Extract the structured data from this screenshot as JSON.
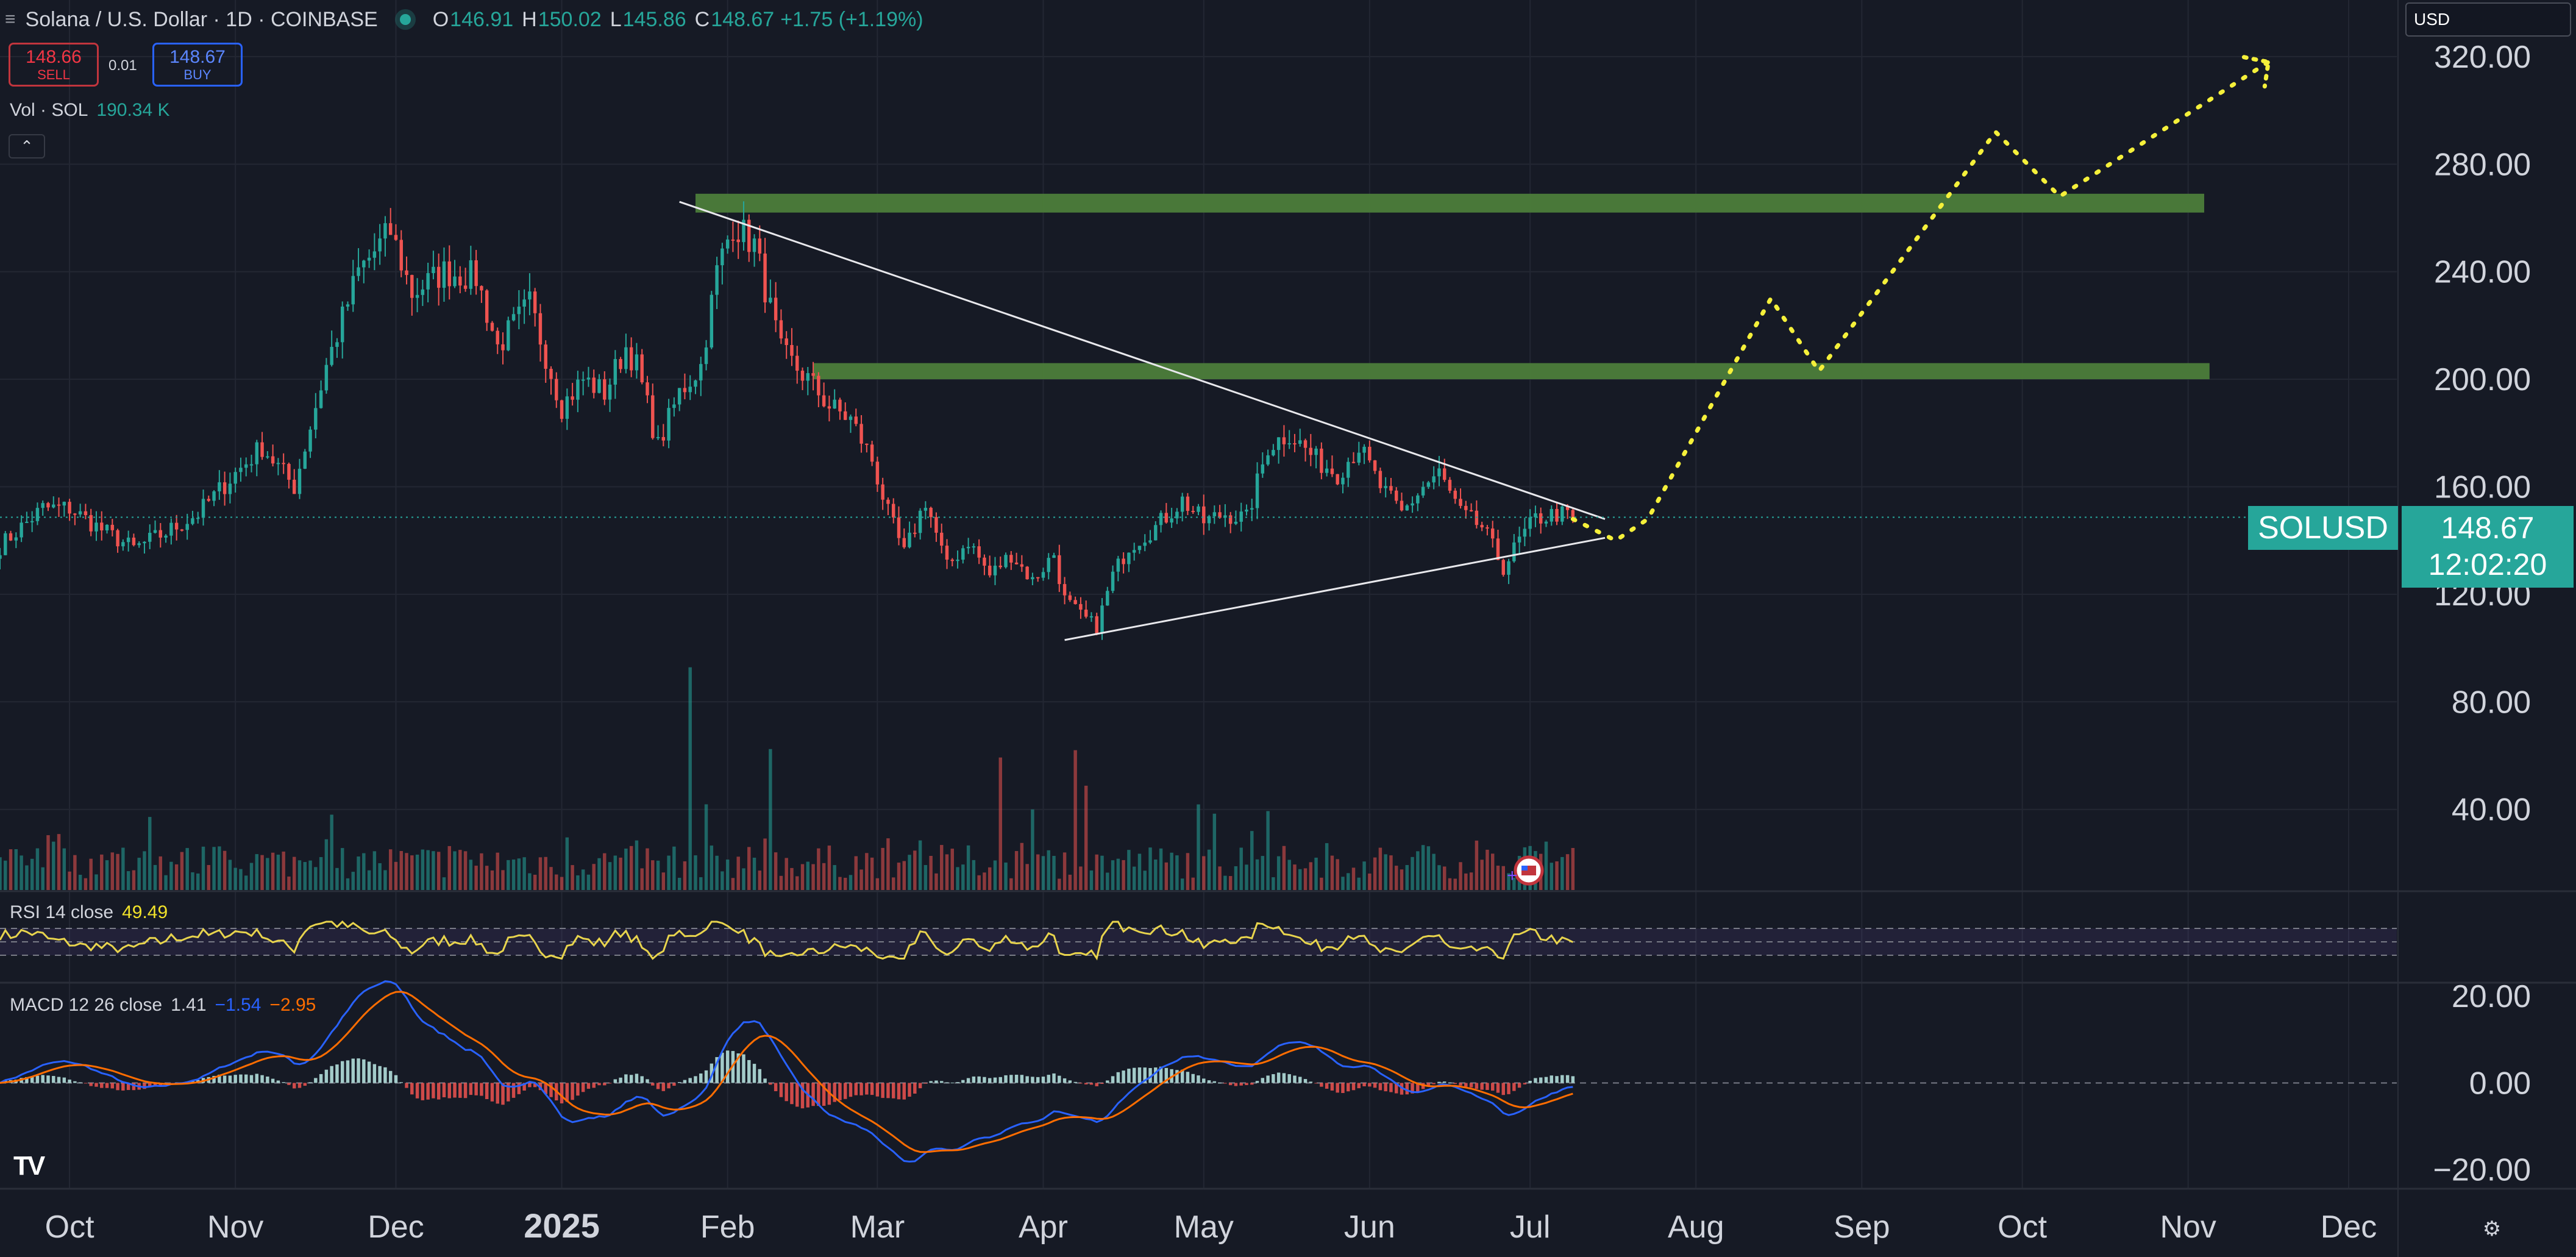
{
  "header": {
    "menu_icon": "hamburger-icon",
    "symbol_title": "Solana / U.S. Dollar · 1D · COINBASE",
    "status_icon": "market-open-dot-icon",
    "o_label": "O",
    "o_value": "146.91",
    "h_label": "H",
    "h_value": "150.02",
    "l_label": "L",
    "l_value": "145.86",
    "c_label": "C",
    "c_value": "148.67",
    "change": "+1.75 (+1.19%)"
  },
  "trade": {
    "sell_price": "148.66",
    "sell_label": "SELL",
    "spread": "0.01",
    "buy_price": "148.67",
    "buy_label": "BUY"
  },
  "volume_legend": {
    "label": "Vol · SOL",
    "value": "190.34 K"
  },
  "collapse_icon": "chevron-up-icon",
  "currency_select": "USD",
  "price_tag": {
    "symbol": "SOLUSD",
    "price": "148.67",
    "countdown": "12:02:20"
  },
  "rsi_legend": {
    "label": "RSI 14 close",
    "value": "49.49"
  },
  "macd_legend": {
    "label": "MACD 12 26 close",
    "hist": "1.41",
    "macd": "−1.54",
    "signal": "−2.95"
  },
  "logo_text": "TV",
  "settings_icon": "settings-icon",
  "chart_data": {
    "type": "candlestick",
    "title": "Solana / U.S. Dollar · 1D · COINBASE",
    "colors": {
      "up": "#26a69a",
      "down": "#ef5350",
      "grid": "#232733",
      "bg": "#161a25",
      "zone": "#4c7d3a",
      "projection": "#f5f03a",
      "rsi": "#e8d44d",
      "macd": "#2962ff",
      "signal": "#ff6d00"
    },
    "x_axis": {
      "ticks": [
        "Oct",
        "Nov",
        "Dec",
        "2025",
        "Feb",
        "Mar",
        "Apr",
        "May",
        "Jun",
        "Jul",
        "Aug",
        "Sep",
        "Oct",
        "Nov",
        "Dec"
      ],
      "tick_days": [
        0,
        31,
        61,
        92,
        123,
        151,
        182,
        212,
        243,
        273,
        304,
        335,
        365,
        396,
        426
      ],
      "day_range": [
        -13,
        435
      ],
      "first_day": "2024-10-01"
    },
    "price_axis": {
      "ticks": [
        40,
        80,
        120,
        160,
        200,
        240,
        280,
        320
      ],
      "tick_labels": [
        "40.00",
        "80.00",
        "120.00",
        "160.00",
        "200.00",
        "240.00",
        "280.00",
        "320.00"
      ],
      "range": [
        10,
        332
      ]
    },
    "price_anchors": [
      [
        -13,
        138
      ],
      [
        -5,
        152
      ],
      [
        0,
        152
      ],
      [
        6,
        144
      ],
      [
        12,
        137
      ],
      [
        18,
        143
      ],
      [
        24,
        150
      ],
      [
        30,
        163
      ],
      [
        36,
        175
      ],
      [
        42,
        160
      ],
      [
        48,
        205
      ],
      [
        54,
        240
      ],
      [
        60,
        255
      ],
      [
        64,
        232
      ],
      [
        70,
        240
      ],
      [
        76,
        238
      ],
      [
        80,
        212
      ],
      [
        86,
        228
      ],
      [
        92,
        190
      ],
      [
        96,
        200
      ],
      [
        100,
        195
      ],
      [
        104,
        212
      ],
      [
        106,
        205
      ],
      [
        110,
        175
      ],
      [
        114,
        195
      ],
      [
        118,
        205
      ],
      [
        121,
        240
      ],
      [
        124,
        258
      ],
      [
        128,
        250
      ],
      [
        133,
        210
      ],
      [
        138,
        200
      ],
      [
        142,
        190
      ],
      [
        146,
        185
      ],
      [
        150,
        170
      ],
      [
        153,
        150
      ],
      [
        156,
        135
      ],
      [
        160,
        155
      ],
      [
        164,
        130
      ],
      [
        168,
        140
      ],
      [
        172,
        127
      ],
      [
        176,
        135
      ],
      [
        180,
        125
      ],
      [
        184,
        135
      ],
      [
        186,
        118
      ],
      [
        189,
        112
      ],
      [
        192,
        108
      ],
      [
        195,
        127
      ],
      [
        198,
        138
      ],
      [
        203,
        145
      ],
      [
        208,
        155
      ],
      [
        212,
        147
      ],
      [
        216,
        150
      ],
      [
        220,
        148
      ],
      [
        224,
        175
      ],
      [
        228,
        180
      ],
      [
        233,
        170
      ],
      [
        237,
        165
      ],
      [
        241,
        175
      ],
      [
        245,
        160
      ],
      [
        249,
        150
      ],
      [
        253,
        160
      ],
      [
        256,
        165
      ],
      [
        260,
        150
      ],
      [
        264,
        145
      ],
      [
        268,
        130
      ],
      [
        271,
        140
      ],
      [
        274,
        148
      ],
      [
        278,
        150
      ],
      [
        281,
        148.67
      ]
    ],
    "volume_spikes": [
      [
        116,
        395
      ],
      [
        119,
        152
      ],
      [
        131,
        250
      ],
      [
        174,
        235
      ],
      [
        188,
        248
      ],
      [
        190,
        185
      ],
      [
        224,
        140
      ]
    ],
    "volume_axis_max": 400,
    "resistance_zones": [
      {
        "price_low": 262,
        "price_high": 269,
        "day_start": 117,
        "day_end": 399
      },
      {
        "price_low": 200,
        "price_high": 206,
        "day_start": 139,
        "day_end": 400
      }
    ],
    "trendlines": [
      {
        "from": [
          114,
          266
        ],
        "to": [
          287,
          148
        ]
      },
      {
        "from": [
          186,
          103
        ],
        "to": [
          287,
          141
        ]
      }
    ],
    "projection_path": [
      [
        281,
        148
      ],
      [
        289,
        140
      ],
      [
        295,
        148
      ],
      [
        318,
        230
      ],
      [
        327,
        203
      ],
      [
        360,
        292
      ],
      [
        372,
        268
      ],
      [
        411,
        318
      ]
    ],
    "arrow_tip": [
      411,
      318
    ],
    "rsi": {
      "range": [
        0,
        100
      ],
      "bands": [
        70,
        50,
        30
      ],
      "current": 49.49
    },
    "macd": {
      "ticks": [
        20,
        0,
        -20
      ],
      "tick_labels": [
        "20.00",
        "0.00",
        "−20.00"
      ],
      "range": [
        -23,
        22
      ],
      "current_macd": -1.54,
      "current_signal": -2.95,
      "current_hist": 1.41
    },
    "last_price": 148.67
  }
}
